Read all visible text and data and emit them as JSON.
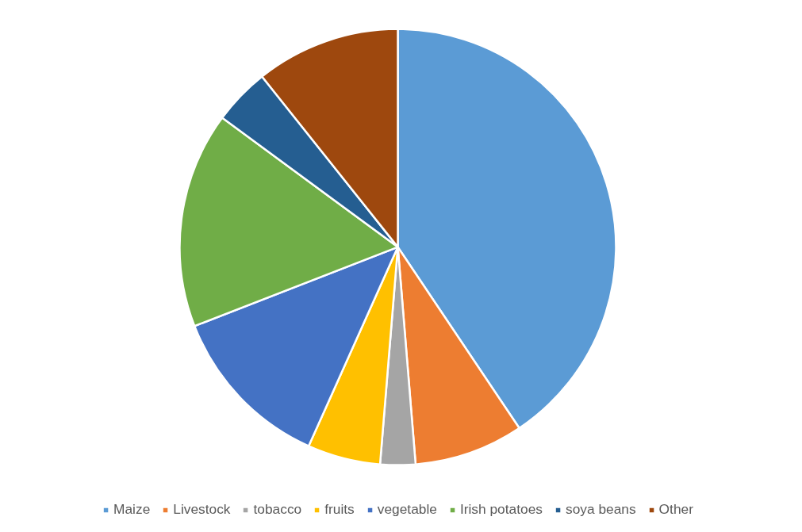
{
  "chart_data": {
    "type": "pie",
    "categories": [
      "Maize",
      "Livestock",
      "tobacco",
      "fruits",
      "vegetable",
      "Irish potatoes",
      "soya beans",
      "Other"
    ],
    "values": [
      40.6,
      8.1,
      2.6,
      5.4,
      12.4,
      16.0,
      4.2,
      10.7
    ],
    "colors": [
      "#5b9bd5",
      "#ed7d31",
      "#a5a5a5",
      "#ffc000",
      "#4472c4",
      "#70ad47",
      "#255e91",
      "#9e480e"
    ],
    "legend": "bottom"
  }
}
